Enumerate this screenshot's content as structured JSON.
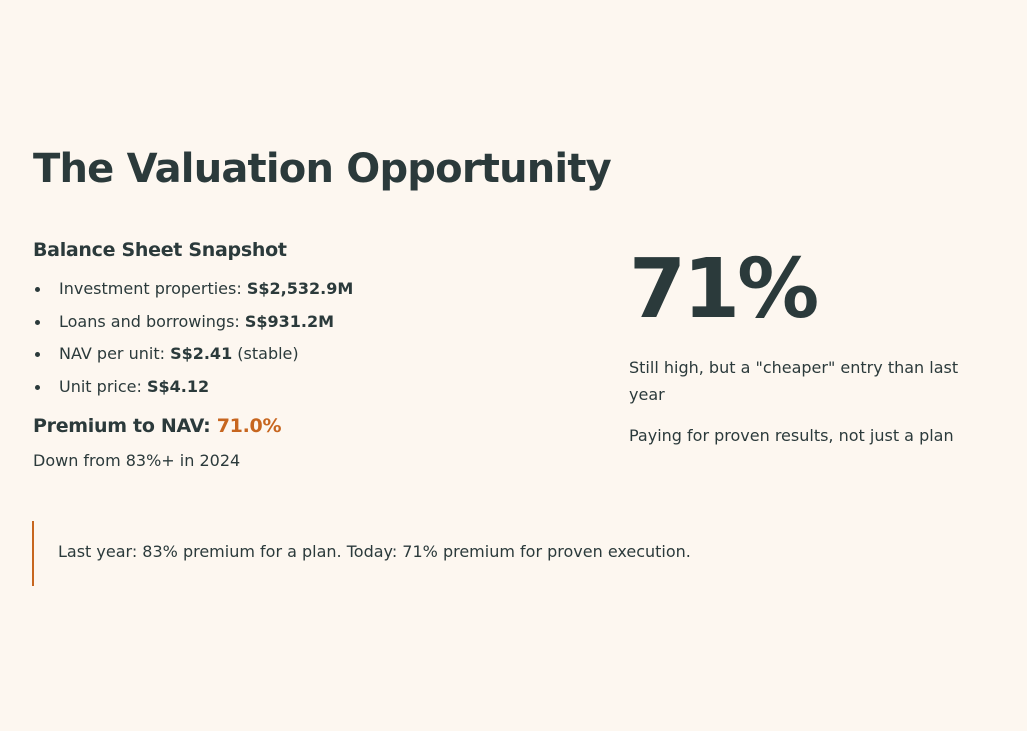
{
  "title": "The Valuation Opportunity",
  "balance_sheet": {
    "heading": "Balance Sheet Snapshot",
    "items": [
      {
        "label": "Investment properties: ",
        "value": "S$2,532.9M",
        "suffix": ""
      },
      {
        "label": "Loans and borrowings: ",
        "value": "S$931.2M",
        "suffix": ""
      },
      {
        "label": "NAV per unit: ",
        "value": "S$2.41",
        "suffix": " (stable)"
      },
      {
        "label": "Unit price: ",
        "value": "S$4.12",
        "suffix": ""
      }
    ]
  },
  "premium": {
    "label": "Premium to NAV: ",
    "value": "71.0%",
    "note": "Down from 83%+ in 2024"
  },
  "highlight": {
    "figure": "71%",
    "line1": "Still high, but a \"cheaper\" entry than last year",
    "line2": "Paying for proven results, not just a plan"
  },
  "callout": {
    "text": "Last year: 83% premium for a plan. Today: 71% premium for proven execution."
  },
  "colors": {
    "background": "#fdf7f0",
    "text": "#2b3a3b",
    "accent": "#c7661f"
  }
}
